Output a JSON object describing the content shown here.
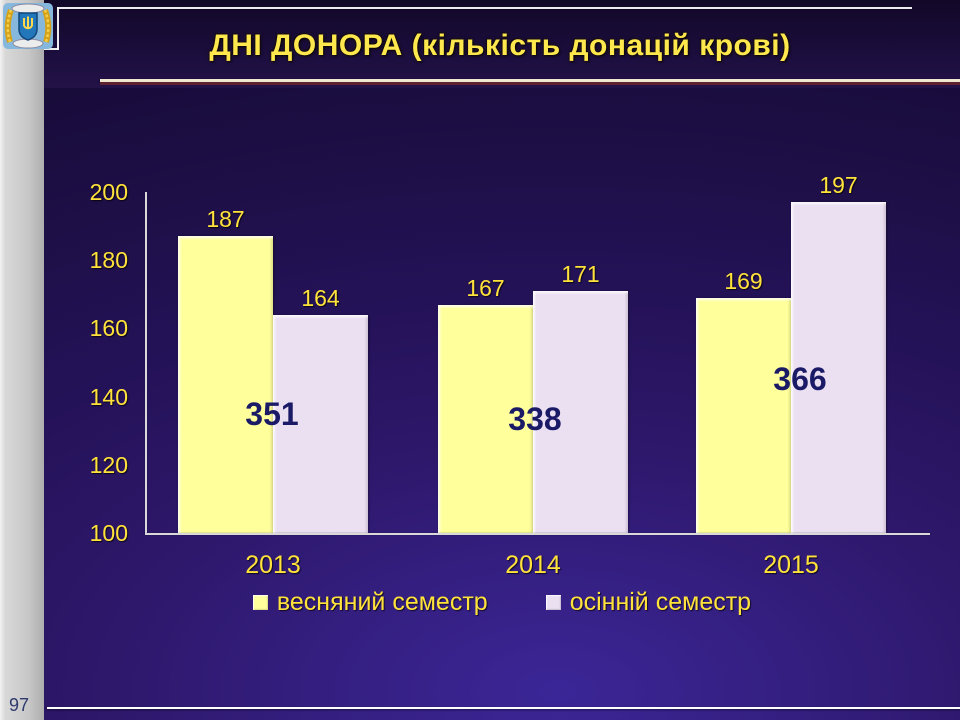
{
  "slide": {
    "title": "ДНІ ДОНОРА (кількість донацій крові)",
    "page_number": "97"
  },
  "logo": {
    "icon": "university-coat-of-arms"
  },
  "colors": {
    "background_center": "#3b2697",
    "background_edge": "#170b38",
    "title_text": "#ffe84d",
    "label_yellow": "#ffe23c",
    "total_text": "#1a1a66",
    "underline_cream": "#f0e9cf",
    "underline_maroon": "#5e2130",
    "axis_line": "#d9d9d9",
    "side_strip": "#c7c7c7",
    "series_spring": "#ffff9c",
    "series_autumn": "#ebdff2"
  },
  "chart_data": {
    "type": "bar",
    "title": "ДНІ ДОНОРА (кількість донацій крові)",
    "categories": [
      "2013",
      "2014",
      "2015"
    ],
    "series": [
      {
        "name": "весняний семестр",
        "color": "#ffff9c",
        "values": [
          187,
          167,
          169
        ]
      },
      {
        "name": "осінній семестр",
        "color": "#ebdff2",
        "values": [
          164,
          171,
          197
        ]
      }
    ],
    "totals": [
      351,
      338,
      366
    ],
    "xlabel": "",
    "ylabel": "",
    "ylim": [
      100,
      200
    ],
    "yticks": [
      100,
      120,
      140,
      160,
      180,
      200
    ],
    "grid": false,
    "legend_position": "bottom",
    "value_labels": true
  }
}
